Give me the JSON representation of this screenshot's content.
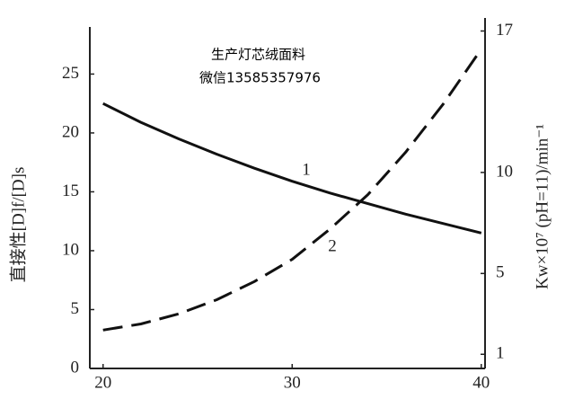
{
  "chart_data": {
    "type": "line",
    "watermark": [
      "生产灯芯绒面料",
      "微信13585357976"
    ],
    "ylabel": "直接性[D]f/[D]s",
    "y2label": "Kw×10⁷ (pH=11)/min⁻¹",
    "x": [
      20,
      22,
      24,
      26,
      28,
      30,
      32,
      34,
      36,
      38,
      40
    ],
    "xlim": [
      19.3,
      40.2
    ],
    "xticks": [
      20,
      30,
      40
    ],
    "ylim": [
      0,
      29
    ],
    "yticks": [
      0,
      5,
      10,
      15,
      20,
      25
    ],
    "y2lim": [
      0.3,
      17.2
    ],
    "y2ticks": [
      1,
      5,
      10,
      17
    ],
    "series": [
      {
        "name": "1",
        "color": "#111",
        "dash": false,
        "values": [
          22.5,
          20.9,
          19.5,
          18.2,
          17.0,
          15.9,
          14.9,
          14.0,
          13.1,
          12.3,
          11.5
        ]
      },
      {
        "name": "2",
        "color": "#111",
        "dash": true,
        "axis": "y2",
        "values": [
          2.2,
          2.5,
          3.0,
          3.7,
          4.6,
          5.7,
          7.2,
          8.9,
          11.0,
          13.4,
          16.1
        ]
      }
    ]
  }
}
